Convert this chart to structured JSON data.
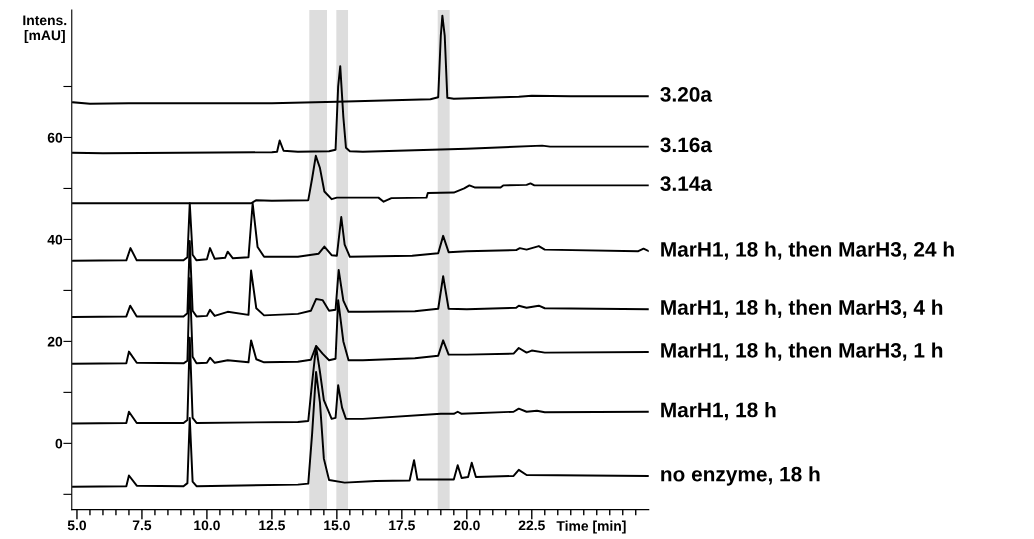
{
  "chart_data": {
    "type": "line",
    "xlabel": "Time [min]",
    "ylabel": "Intens.\n[mAU]",
    "xlim": [
      4.8,
      27
    ],
    "ylim": [
      -13,
      85
    ],
    "line_style": "solid",
    "xticks": [
      {
        "value": 5,
        "label": "5.0"
      },
      {
        "value": 5.5,
        "label": null
      },
      {
        "value": 6,
        "label": null
      },
      {
        "value": 6.5,
        "label": null
      },
      {
        "value": 7,
        "label": null
      },
      {
        "value": 7.5,
        "label": "7.5"
      },
      {
        "value": 8,
        "label": null
      },
      {
        "value": 8.5,
        "label": null
      },
      {
        "value": 9,
        "label": null
      },
      {
        "value": 9.5,
        "label": null
      },
      {
        "value": 10,
        "label": "10.0"
      },
      {
        "value": 10.5,
        "label": null
      },
      {
        "value": 11,
        "label": null
      },
      {
        "value": 11.5,
        "label": null
      },
      {
        "value": 12,
        "label": null
      },
      {
        "value": 12.5,
        "label": "12.5"
      },
      {
        "value": 13,
        "label": null
      },
      {
        "value": 13.5,
        "label": null
      },
      {
        "value": 14,
        "label": null
      },
      {
        "value": 14.5,
        "label": null
      },
      {
        "value": 15,
        "label": "15.0"
      },
      {
        "value": 15.5,
        "label": null
      },
      {
        "value": 16,
        "label": null
      },
      {
        "value": 16.5,
        "label": null
      },
      {
        "value": 17,
        "label": null
      },
      {
        "value": 17.5,
        "label": "17.5"
      },
      {
        "value": 18,
        "label": null
      },
      {
        "value": 18.5,
        "label": null
      },
      {
        "value": 19,
        "label": null
      },
      {
        "value": 19.5,
        "label": null
      },
      {
        "value": 20,
        "label": "20.0"
      },
      {
        "value": 20.5,
        "label": null
      },
      {
        "value": 21,
        "label": null
      },
      {
        "value": 21.5,
        "label": null
      },
      {
        "value": 22,
        "label": null
      },
      {
        "value": 22.5,
        "label": "22.5"
      },
      {
        "value": 23,
        "label": null
      },
      {
        "value": 23.5,
        "label": null
      },
      {
        "value": 24,
        "label": null
      },
      {
        "value": 24.5,
        "label": null
      },
      {
        "value": 25,
        "label": null
      },
      {
        "value": 25.5,
        "label": null
      },
      {
        "value": 26,
        "label": null
      },
      {
        "value": 26.5,
        "label": null
      }
    ],
    "yticks": [
      {
        "value": -10,
        "label": null
      },
      0,
      {
        "value": 10,
        "label": null
      },
      20,
      {
        "value": 30,
        "label": null
      },
      40,
      {
        "value": 50,
        "label": null
      },
      60,
      {
        "value": 70,
        "label": null
      }
    ],
    "bands": [
      {
        "axis": "x",
        "from": 13.94,
        "to": 14.62,
        "color": "#dddddd"
      },
      {
        "axis": "x",
        "from": 14.98,
        "to": 15.43,
        "color": "#dddddd"
      },
      {
        "axis": "x",
        "from": 18.88,
        "to": 19.34,
        "color": "#dddddd"
      }
    ],
    "series": [
      {
        "name": "3.20a",
        "color": "#000000",
        "x": [
          4.85,
          5.5,
          7,
          12.5,
          15,
          18.6,
          18.9,
          19.0,
          19.06,
          19.15,
          19.25,
          19.5,
          22,
          22.5,
          24,
          27
        ],
        "values": [
          66.9,
          66.6,
          66.7,
          66.7,
          67.0,
          67.5,
          67.9,
          80,
          83.9,
          80,
          67.8,
          67.6,
          68.0,
          68.2,
          68.1,
          68.1
        ]
      },
      {
        "name": "3.16a",
        "color": "#000000",
        "x": [
          4.85,
          6,
          9,
          12.5,
          12.7,
          12.8,
          12.95,
          13.5,
          14.7,
          14.95,
          15.05,
          15.13,
          15.25,
          15.35,
          15.5,
          16,
          18,
          20,
          22.9,
          23.2,
          27
        ],
        "values": [
          57.0,
          56.9,
          57.0,
          57.1,
          57.2,
          59.4,
          57.4,
          57.2,
          57.3,
          57.6,
          70,
          74.0,
          64,
          58.0,
          57.3,
          57.2,
          57.5,
          57.8,
          58.4,
          58.2,
          58.2
        ]
      },
      {
        "name": "3.14a",
        "color": "#000000",
        "x": [
          4.85,
          11.7,
          11.9,
          12.5,
          13.9,
          14.05,
          14.19,
          14.35,
          14.52,
          14.8,
          15.0,
          16.6,
          16.8,
          17.1,
          18.45,
          18.5,
          19.5,
          19.9,
          20.1,
          20.3,
          21.3,
          21.4,
          22.3,
          22.45,
          22.6,
          27
        ],
        "values": [
          47.1,
          47.1,
          47.7,
          47.6,
          47.7,
          52,
          56.4,
          54,
          49.4,
          47.9,
          48.2,
          48.2,
          47.4,
          48.1,
          48.2,
          49.1,
          49.2,
          50.0,
          50.6,
          50.2,
          50.2,
          50.6,
          50.7,
          51.0,
          50.6,
          50.6
        ]
      },
      {
        "name": "MarH1, 18 h, then MarH3, 24 h",
        "color": "#000000",
        "x": [
          4.85,
          6.9,
          7.06,
          7.3,
          9.1,
          9.25,
          9.34,
          9.45,
          9.6,
          10.0,
          10.12,
          10.3,
          10.7,
          10.8,
          11.0,
          11.6,
          11.76,
          11.95,
          12.2,
          13.5,
          14.3,
          14.52,
          14.8,
          15.0,
          15.17,
          15.3,
          15.5,
          17.9,
          18.9,
          19.09,
          19.3,
          20,
          21.9,
          22.04,
          22.3,
          22.77,
          23.0,
          26.6,
          26.8,
          27
        ],
        "values": [
          35.8,
          35.9,
          38.3,
          35.9,
          35.9,
          36.5,
          47.1,
          37,
          35.9,
          36.1,
          38.3,
          36.2,
          36.4,
          37.6,
          36.3,
          36.5,
          47.1,
          38.5,
          36.6,
          36.6,
          37.2,
          38.6,
          36.9,
          36.8,
          44.4,
          39,
          36.6,
          36.8,
          37.3,
          40.7,
          37.5,
          37.7,
          37.9,
          38.3,
          38.0,
          38.7,
          38.0,
          37.7,
          38.2,
          37.7
        ]
      },
      {
        "name": "MarH1, 18 h, then MarH3, 4 h",
        "color": "#000000",
        "x": [
          4.85,
          6.9,
          7.05,
          7.3,
          9.1,
          9.25,
          9.34,
          9.45,
          9.6,
          10.0,
          10.12,
          10.3,
          10.8,
          11.6,
          11.7,
          11.9,
          12.2,
          13.5,
          14.0,
          14.2,
          14.45,
          14.7,
          14.95,
          15.07,
          15.25,
          15.45,
          16,
          18,
          18.9,
          19.09,
          19.3,
          20,
          21.9,
          22.0,
          22.3,
          22.77,
          23.0,
          27
        ],
        "values": [
          24.8,
          24.9,
          27.0,
          24.9,
          24.9,
          25.5,
          39.7,
          26,
          24.9,
          25.0,
          26.2,
          25.0,
          25.8,
          25.2,
          33.9,
          26.5,
          25.1,
          25.4,
          26.0,
          28.3,
          28.1,
          26.0,
          26.2,
          34.0,
          28,
          25.8,
          25.8,
          25.9,
          26.4,
          32.8,
          26.4,
          26.3,
          26.6,
          27.0,
          26.6,
          27.0,
          26.5,
          26.3
        ]
      },
      {
        "name": "MarH1, 18 h, then MarH3, 1 h",
        "color": "#000000",
        "x": [
          4.85,
          6.9,
          7.0,
          7.3,
          9.1,
          9.25,
          9.34,
          9.45,
          9.6,
          10.0,
          10.12,
          10.3,
          10.8,
          11.6,
          11.7,
          11.9,
          12.2,
          13.5,
          14.0,
          14.2,
          14.45,
          14.7,
          14.95,
          15.05,
          15.25,
          15.45,
          16,
          18,
          18.9,
          19.09,
          19.3,
          20,
          21.8,
          22.0,
          22.3,
          22.5,
          23,
          27
        ],
        "values": [
          15.6,
          15.7,
          18.0,
          15.8,
          15.7,
          16.2,
          32.4,
          17,
          15.7,
          15.8,
          16.8,
          15.8,
          16.3,
          15.9,
          20.2,
          16.5,
          15.9,
          16.0,
          16.4,
          19.1,
          17.6,
          16.3,
          16.6,
          28.1,
          20,
          16.3,
          16.3,
          16.7,
          17.2,
          20.2,
          17.4,
          17.4,
          17.6,
          18.7,
          17.8,
          18.2,
          17.8,
          17.9
        ]
      },
      {
        "name": "MarH1, 18 h",
        "color": "#000000",
        "x": [
          4.85,
          6.9,
          7.0,
          7.3,
          9.1,
          9.25,
          9.34,
          9.45,
          9.6,
          13.5,
          13.9,
          14.05,
          14.2,
          14.35,
          14.5,
          14.8,
          14.95,
          15.05,
          15.2,
          15.35,
          16,
          19,
          19.5,
          19.65,
          19.8,
          21.8,
          22.0,
          22.3,
          22.7,
          23,
          27
        ],
        "values": [
          3.9,
          4.0,
          6.2,
          4.0,
          4.0,
          4.6,
          20.7,
          5,
          4.0,
          4.2,
          4.4,
          12,
          19.0,
          14,
          8.5,
          4.8,
          5.0,
          11.4,
          7,
          4.8,
          4.8,
          5.8,
          5.8,
          6.2,
          5.8,
          6.2,
          6.8,
          6.2,
          6.4,
          6.1,
          6.2
        ]
      },
      {
        "name": "no enzyme, 18 h",
        "color": "#000000",
        "x": [
          4.85,
          6.9,
          7.0,
          7.3,
          9.1,
          9.25,
          9.34,
          9.45,
          9.6,
          13.5,
          13.9,
          14.05,
          14.2,
          14.35,
          14.5,
          14.7,
          15.3,
          16.5,
          17.8,
          17.97,
          18.1,
          19.5,
          19.65,
          19.8,
          20.05,
          20.19,
          20.35,
          21.8,
          22.0,
          22.3,
          27
        ],
        "values": [
          -8.5,
          -8.4,
          -6.3,
          -8.3,
          -8.4,
          -7.8,
          5.0,
          -7.5,
          -8.4,
          -8.1,
          -7.9,
          2,
          14,
          8,
          -3,
          -7.2,
          -7.7,
          -7.4,
          -7.3,
          -3.3,
          -7.1,
          -7.1,
          -4.3,
          -6.8,
          -6.6,
          -3.8,
          -6.6,
          -6.4,
          -5.2,
          -6.2,
          -6.4
        ]
      }
    ]
  }
}
